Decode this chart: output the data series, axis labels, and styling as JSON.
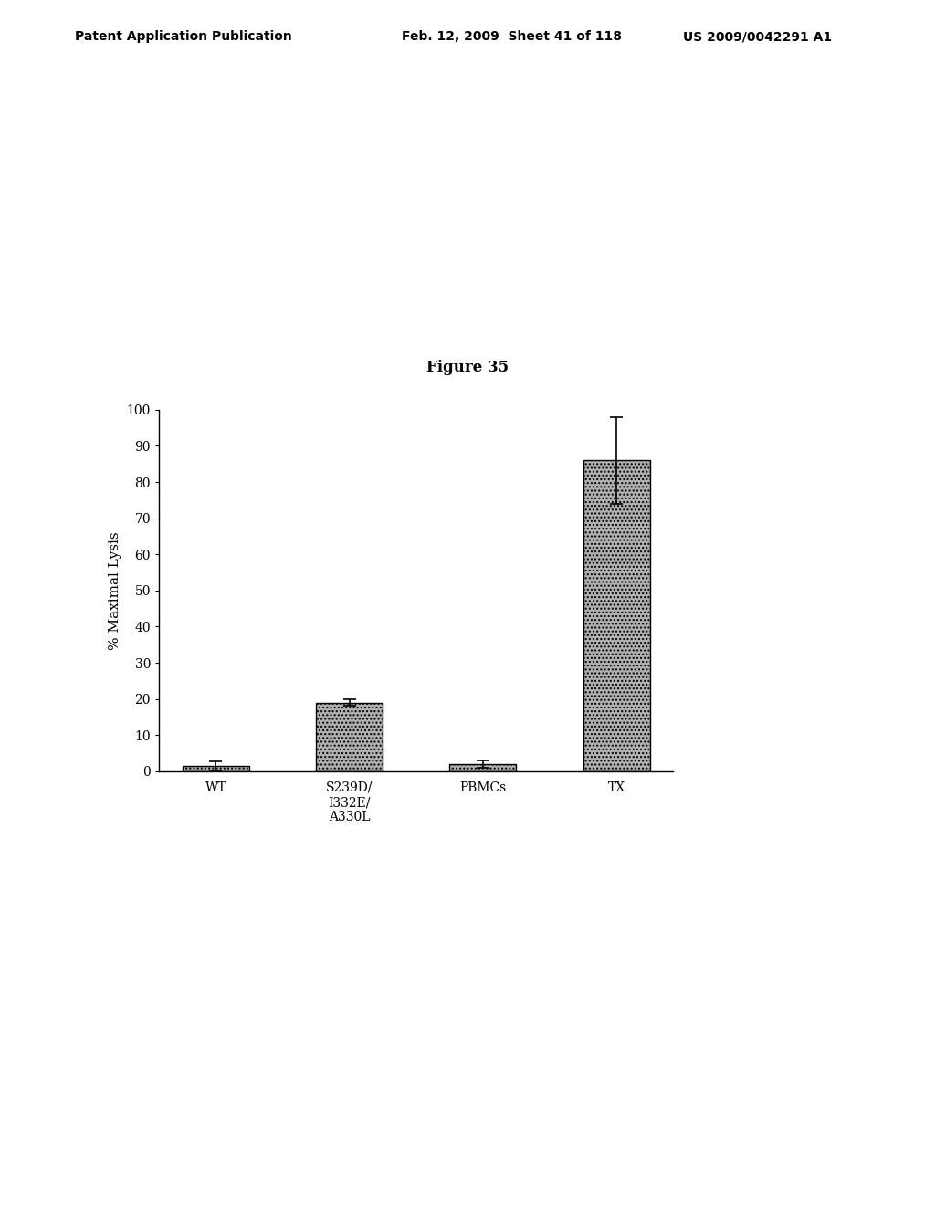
{
  "title": "Figure 35",
  "categories": [
    "WT",
    "S239D/\nI332E/\nA330L",
    "PBMCs",
    "TX"
  ],
  "values": [
    1.5,
    19.0,
    2.0,
    86.0
  ],
  "errors": [
    1.2,
    0.8,
    1.0,
    12.0
  ],
  "ylabel": "% Maximal Lysis",
  "ylim": [
    0,
    100
  ],
  "yticks": [
    0,
    10,
    20,
    30,
    40,
    50,
    60,
    70,
    80,
    90,
    100
  ],
  "bar_color": "#b0b0b0",
  "bar_edgecolor": "#000000",
  "background_color": "#ffffff",
  "header_left": "Patent Application Publication",
  "header_mid": "Feb. 12, 2009  Sheet 41 of 118",
  "header_right": "US 2009/0042291 A1",
  "header_fontsize": 10,
  "title_fontsize": 12,
  "axis_fontsize": 11,
  "tick_fontsize": 10,
  "xlabel_fontsize": 10
}
